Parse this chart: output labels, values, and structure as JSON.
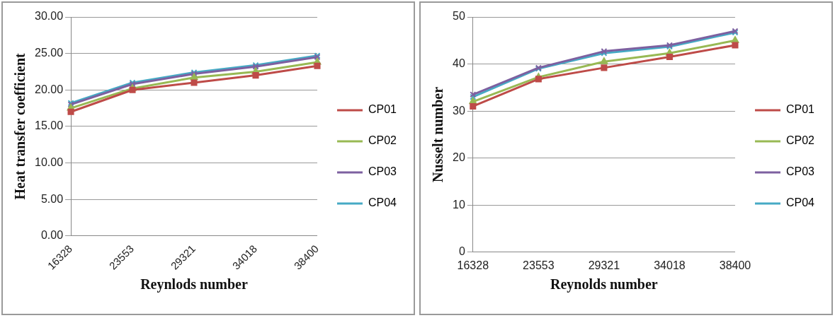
{
  "chart_data": [
    {
      "type": "line",
      "xlabel": "Reynlods number",
      "ylabel": "Heat transfer coefficient",
      "categories": [
        "16328",
        "23553",
        "29321",
        "34018",
        "38400"
      ],
      "series": [
        {
          "name": "CP01",
          "color": "#be4b48",
          "marker": "square",
          "values": [
            17.0,
            20.0,
            21.0,
            22.0,
            23.3
          ]
        },
        {
          "name": "CP02",
          "color": "#98b954",
          "marker": "triangle",
          "values": [
            17.5,
            20.2,
            21.7,
            22.5,
            23.8
          ]
        },
        {
          "name": "CP03",
          "color": "#7d60a0",
          "marker": "cross",
          "values": [
            18.0,
            20.8,
            22.2,
            23.2,
            24.5
          ]
        },
        {
          "name": "CP04",
          "color": "#46aac5",
          "marker": "cross",
          "values": [
            18.2,
            21.0,
            22.4,
            23.4,
            24.7
          ]
        }
      ],
      "ylim": [
        0,
        30
      ],
      "yticks": [
        {
          "value": 0,
          "label": "0.00"
        },
        {
          "value": 5,
          "label": "5.00"
        },
        {
          "value": 10,
          "label": "10.00"
        },
        {
          "value": 15,
          "label": "15.00"
        },
        {
          "value": 20,
          "label": "20.00"
        },
        {
          "value": 25,
          "label": "25.00"
        },
        {
          "value": 30,
          "label": "30.00"
        }
      ],
      "grid": "y",
      "legend": "right"
    },
    {
      "type": "line",
      "xlabel": "Reynolds number",
      "ylabel": "Nusselt number",
      "categories": [
        "16328",
        "23553",
        "29321",
        "34018",
        "38400"
      ],
      "series": [
        {
          "name": "CP01",
          "color": "#be4b48",
          "marker": "square",
          "values": [
            31,
            36.8,
            39.2,
            41.5,
            44
          ]
        },
        {
          "name": "CP02",
          "color": "#98b954",
          "marker": "triangle",
          "values": [
            32,
            37.2,
            40.5,
            42.3,
            45
          ]
        },
        {
          "name": "CP03",
          "color": "#7d60a0",
          "marker": "cross",
          "values": [
            33.5,
            39.2,
            42.7,
            44,
            47
          ]
        },
        {
          "name": "CP04",
          "color": "#46aac5",
          "marker": "cross",
          "values": [
            33,
            39,
            42.3,
            43.7,
            46.7
          ]
        }
      ],
      "ylim": [
        0,
        50
      ],
      "yticks": [
        0,
        10,
        20,
        30,
        40,
        50
      ],
      "grid": "y",
      "legend": "right"
    }
  ]
}
